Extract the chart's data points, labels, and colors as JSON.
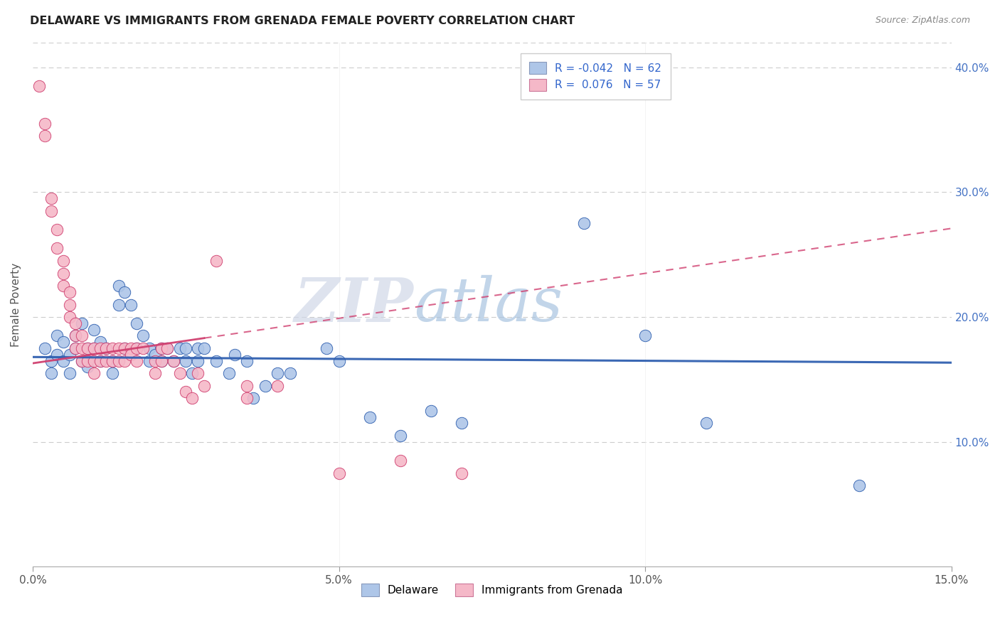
{
  "title": "DELAWARE VS IMMIGRANTS FROM GRENADA FEMALE POVERTY CORRELATION CHART",
  "source": "Source: ZipAtlas.com",
  "ylabel": "Female Poverty",
  "watermark_zip": "ZIP",
  "watermark_atlas": "atlas",
  "xlim": [
    0.0,
    0.15
  ],
  "ylim": [
    0.0,
    0.42
  ],
  "xtick_labels": [
    "0.0%",
    "5.0%",
    "10.0%",
    "15.0%"
  ],
  "xtick_positions": [
    0.0,
    0.05,
    0.1,
    0.15
  ],
  "ytick_labels": [
    "10.0%",
    "20.0%",
    "30.0%",
    "40.0%"
  ],
  "ytick_positions": [
    0.1,
    0.2,
    0.3,
    0.4
  ],
  "blue_label": "Delaware",
  "pink_label": "Immigrants from Grenada",
  "blue_R": "-0.042",
  "blue_N": "62",
  "pink_R": "0.076",
  "pink_N": "57",
  "blue_color": "#aec6e8",
  "pink_color": "#f5b8c8",
  "blue_line_color": "#3060b0",
  "pink_line_color": "#d04070",
  "blue_scatter": [
    [
      0.002,
      0.175
    ],
    [
      0.003,
      0.165
    ],
    [
      0.003,
      0.155
    ],
    [
      0.004,
      0.185
    ],
    [
      0.004,
      0.17
    ],
    [
      0.005,
      0.18
    ],
    [
      0.005,
      0.165
    ],
    [
      0.006,
      0.17
    ],
    [
      0.006,
      0.155
    ],
    [
      0.007,
      0.185
    ],
    [
      0.007,
      0.175
    ],
    [
      0.008,
      0.195
    ],
    [
      0.008,
      0.165
    ],
    [
      0.009,
      0.175
    ],
    [
      0.009,
      0.16
    ],
    [
      0.01,
      0.19
    ],
    [
      0.01,
      0.175
    ],
    [
      0.011,
      0.18
    ],
    [
      0.011,
      0.165
    ],
    [
      0.012,
      0.175
    ],
    [
      0.013,
      0.165
    ],
    [
      0.013,
      0.155
    ],
    [
      0.014,
      0.225
    ],
    [
      0.014,
      0.21
    ],
    [
      0.015,
      0.22
    ],
    [
      0.015,
      0.175
    ],
    [
      0.016,
      0.21
    ],
    [
      0.017,
      0.195
    ],
    [
      0.017,
      0.175
    ],
    [
      0.018,
      0.185
    ],
    [
      0.019,
      0.175
    ],
    [
      0.019,
      0.165
    ],
    [
      0.02,
      0.17
    ],
    [
      0.021,
      0.175
    ],
    [
      0.021,
      0.165
    ],
    [
      0.022,
      0.175
    ],
    [
      0.023,
      0.165
    ],
    [
      0.024,
      0.175
    ],
    [
      0.025,
      0.175
    ],
    [
      0.025,
      0.165
    ],
    [
      0.026,
      0.155
    ],
    [
      0.027,
      0.175
    ],
    [
      0.027,
      0.165
    ],
    [
      0.028,
      0.175
    ],
    [
      0.03,
      0.165
    ],
    [
      0.032,
      0.155
    ],
    [
      0.033,
      0.17
    ],
    [
      0.035,
      0.165
    ],
    [
      0.036,
      0.135
    ],
    [
      0.038,
      0.145
    ],
    [
      0.04,
      0.155
    ],
    [
      0.042,
      0.155
    ],
    [
      0.048,
      0.175
    ],
    [
      0.05,
      0.165
    ],
    [
      0.055,
      0.12
    ],
    [
      0.06,
      0.105
    ],
    [
      0.065,
      0.125
    ],
    [
      0.07,
      0.115
    ],
    [
      0.09,
      0.275
    ],
    [
      0.1,
      0.185
    ],
    [
      0.11,
      0.115
    ],
    [
      0.135,
      0.065
    ]
  ],
  "pink_scatter": [
    [
      0.001,
      0.385
    ],
    [
      0.002,
      0.355
    ],
    [
      0.002,
      0.345
    ],
    [
      0.003,
      0.295
    ],
    [
      0.003,
      0.285
    ],
    [
      0.004,
      0.27
    ],
    [
      0.004,
      0.255
    ],
    [
      0.005,
      0.245
    ],
    [
      0.005,
      0.235
    ],
    [
      0.005,
      0.225
    ],
    [
      0.006,
      0.22
    ],
    [
      0.006,
      0.21
    ],
    [
      0.006,
      0.2
    ],
    [
      0.007,
      0.195
    ],
    [
      0.007,
      0.185
    ],
    [
      0.007,
      0.175
    ],
    [
      0.008,
      0.185
    ],
    [
      0.008,
      0.175
    ],
    [
      0.008,
      0.165
    ],
    [
      0.009,
      0.175
    ],
    [
      0.009,
      0.165
    ],
    [
      0.01,
      0.175
    ],
    [
      0.01,
      0.165
    ],
    [
      0.01,
      0.155
    ],
    [
      0.011,
      0.175
    ],
    [
      0.011,
      0.165
    ],
    [
      0.012,
      0.175
    ],
    [
      0.012,
      0.165
    ],
    [
      0.013,
      0.175
    ],
    [
      0.013,
      0.165
    ],
    [
      0.014,
      0.175
    ],
    [
      0.014,
      0.165
    ],
    [
      0.015,
      0.175
    ],
    [
      0.015,
      0.165
    ],
    [
      0.016,
      0.175
    ],
    [
      0.016,
      0.17
    ],
    [
      0.017,
      0.175
    ],
    [
      0.017,
      0.165
    ],
    [
      0.018,
      0.175
    ],
    [
      0.02,
      0.165
    ],
    [
      0.02,
      0.155
    ],
    [
      0.021,
      0.175
    ],
    [
      0.021,
      0.165
    ],
    [
      0.022,
      0.175
    ],
    [
      0.023,
      0.165
    ],
    [
      0.024,
      0.155
    ],
    [
      0.025,
      0.14
    ],
    [
      0.026,
      0.135
    ],
    [
      0.027,
      0.155
    ],
    [
      0.028,
      0.145
    ],
    [
      0.03,
      0.245
    ],
    [
      0.035,
      0.145
    ],
    [
      0.035,
      0.135
    ],
    [
      0.04,
      0.145
    ],
    [
      0.05,
      0.075
    ],
    [
      0.06,
      0.085
    ],
    [
      0.07,
      0.075
    ]
  ]
}
